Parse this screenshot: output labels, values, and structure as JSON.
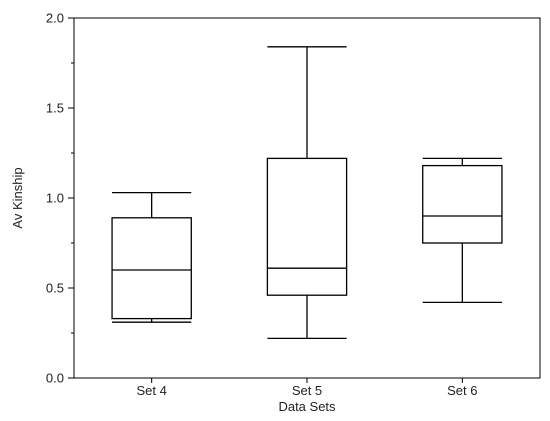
{
  "chart_data": {
    "type": "box",
    "xlabel": "Data Sets",
    "ylabel": "Av Kinship",
    "ylim": [
      0.0,
      2.0
    ],
    "yticks": [
      "0.0",
      "0.5",
      "1.0",
      "1.5",
      "2.0"
    ],
    "grid": false,
    "categories": [
      "Set 4",
      "Set 5",
      "Set 6"
    ],
    "boxes": [
      {
        "category": "Set 4",
        "min": 0.31,
        "q1": 0.33,
        "median": 0.6,
        "q3": 0.89,
        "max": 1.03
      },
      {
        "category": "Set 5",
        "min": 0.22,
        "q1": 0.46,
        "median": 0.61,
        "q3": 1.22,
        "max": 1.84
      },
      {
        "category": "Set 6",
        "min": 0.42,
        "q1": 0.75,
        "median": 0.9,
        "q3": 1.18,
        "max": 1.22
      }
    ]
  }
}
